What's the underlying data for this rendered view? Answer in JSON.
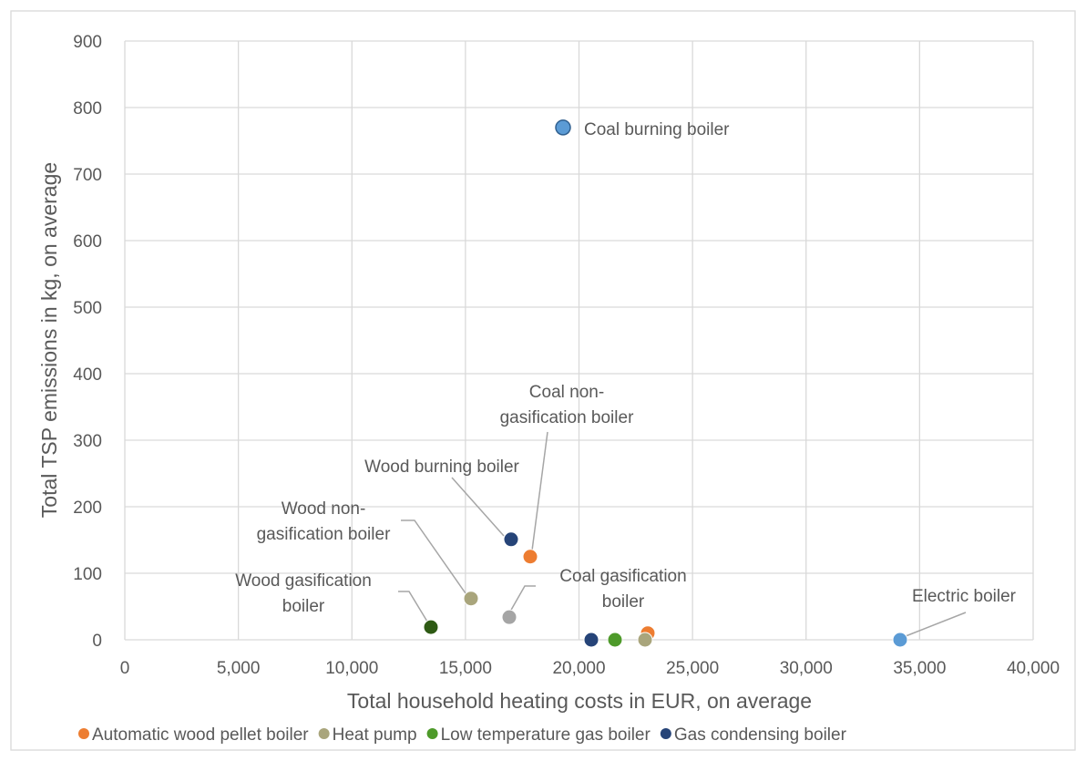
{
  "chart_data": {
    "type": "scatter",
    "x_label": "Total household heating costs in EUR, on average",
    "y_label": "Total TSP emissions in kg, on average",
    "xlim": [
      0,
      40000
    ],
    "ylim": [
      0,
      900
    ],
    "xticks": [
      0,
      {
        "value": 5000,
        "label": "5,000"
      },
      {
        "value": 10000,
        "label": "10,000"
      },
      {
        "value": 15000,
        "label": "15,000"
      },
      {
        "value": 20000,
        "label": "20,000"
      },
      {
        "value": 25000,
        "label": "25,000"
      },
      {
        "value": 30000,
        "label": "30,000"
      },
      {
        "value": 35000,
        "label": "35,000"
      },
      {
        "value": 40000,
        "label": "40,000"
      }
    ],
    "yticks": [
      0,
      100,
      200,
      300,
      400,
      500,
      600,
      700,
      800,
      900
    ],
    "grid": true,
    "legend": "bottom",
    "series": [
      {
        "name": "Automatic wood pellet boiler",
        "color": "#ed7d31",
        "x": [
          23029
        ],
        "values": [
          10
        ]
      },
      {
        "name": "Heat pump",
        "color": "#a9a57c",
        "x": [
          22909
        ],
        "values": [
          0
        ]
      },
      {
        "name": "Low temperature gas boiler",
        "color": "#4e9a2a",
        "x": [
          21585
        ],
        "values": [
          0
        ]
      },
      {
        "name": "Gas condensing boiler",
        "color": "#264478",
        "x": [
          20542
        ],
        "values": [
          0
        ]
      }
    ],
    "labeled_points": [
      {
        "label": [
          "Coal burning boiler"
        ],
        "color": "#5b9bd5",
        "x": 19298,
        "y": 770
      },
      {
        "label": [
          "Coal non-",
          "gasification boiler"
        ],
        "color": "#ed7d31",
        "x": 17854,
        "y": 125
      },
      {
        "label": [
          "Wood burning boiler"
        ],
        "color": "#264478",
        "x": 17011,
        "y": 151
      },
      {
        "label": [
          "Wood non-",
          "gasification boiler"
        ],
        "color": "#a9a57c",
        "x": 15246,
        "y": 62
      },
      {
        "label": [
          "Coal gasification",
          "boiler"
        ],
        "color": "#a5a5a5",
        "x": 16931,
        "y": 34
      },
      {
        "label": [
          "Wood gasification",
          "boiler"
        ],
        "color": "#2e5a14",
        "x": 13480,
        "y": 19
      },
      {
        "label": [
          "Electric boiler"
        ],
        "color": "#5b9bd5",
        "x": 34142,
        "y": 0
      }
    ]
  }
}
